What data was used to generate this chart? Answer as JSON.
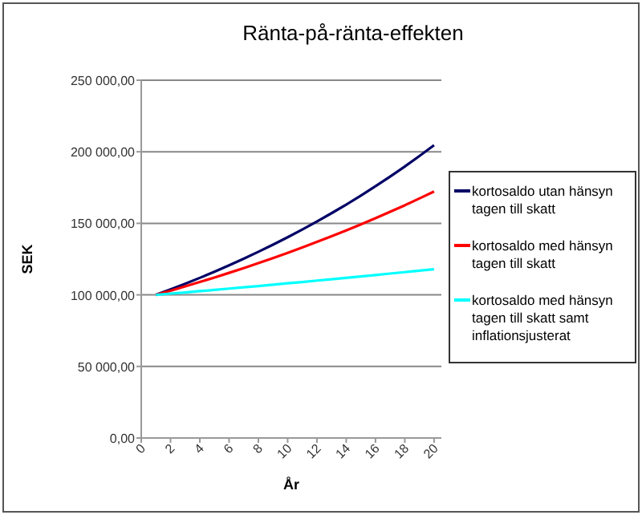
{
  "chart_data": {
    "type": "line",
    "title": "Ränta-på-ränta-effekten",
    "xlabel": "År",
    "ylabel": "SEK",
    "x": [
      1,
      2,
      3,
      4,
      5,
      6,
      7,
      8,
      9,
      10,
      11,
      12,
      13,
      14,
      15,
      16,
      17,
      18,
      19,
      20
    ],
    "xlim": [
      0,
      20.5
    ],
    "xticks": [
      0,
      2,
      4,
      6,
      8,
      10,
      12,
      14,
      16,
      18,
      20
    ],
    "ylim": [
      0,
      250000
    ],
    "yticks": [
      {
        "value": 0,
        "label": "0,00"
      },
      {
        "value": 50000,
        "label": "50 000,00"
      },
      {
        "value": 100000,
        "label": "100 000,00"
      },
      {
        "value": 150000,
        "label": "150 000,00"
      },
      {
        "value": 200000,
        "label": "200 000,00"
      },
      {
        "value": 250000,
        "label": "250 000,00"
      }
    ],
    "grid": "y",
    "legend": "right",
    "marker": "none",
    "series": [
      {
        "name": "kortosaldo utan hänsyn tagen till skatt",
        "color": "#000066",
        "values": [
          100000,
          103800,
          107800,
          111900,
          116200,
          120700,
          125300,
          130100,
          135100,
          140300,
          145700,
          151300,
          157100,
          163100,
          169400,
          175900,
          182700,
          189700,
          197000,
          204600
        ]
      },
      {
        "name": "kortosaldo med hänsyn tagen till skatt",
        "color": "#ff0000",
        "values": [
          100000,
          102900,
          105900,
          109000,
          112100,
          115400,
          118700,
          122200,
          125700,
          129400,
          133100,
          137000,
          141000,
          145100,
          149300,
          153600,
          158100,
          162600,
          167400,
          172200
        ]
      },
      {
        "name": "kortosaldo med hänsyn tagen till skatt samt inflationsjusterat",
        "color": "#00ffff",
        "values": [
          100000,
          100900,
          101700,
          102600,
          103500,
          104400,
          105300,
          106200,
          107100,
          108100,
          109000,
          110000,
          110900,
          111900,
          112900,
          113900,
          114900,
          115900,
          116900,
          117900
        ]
      }
    ]
  }
}
